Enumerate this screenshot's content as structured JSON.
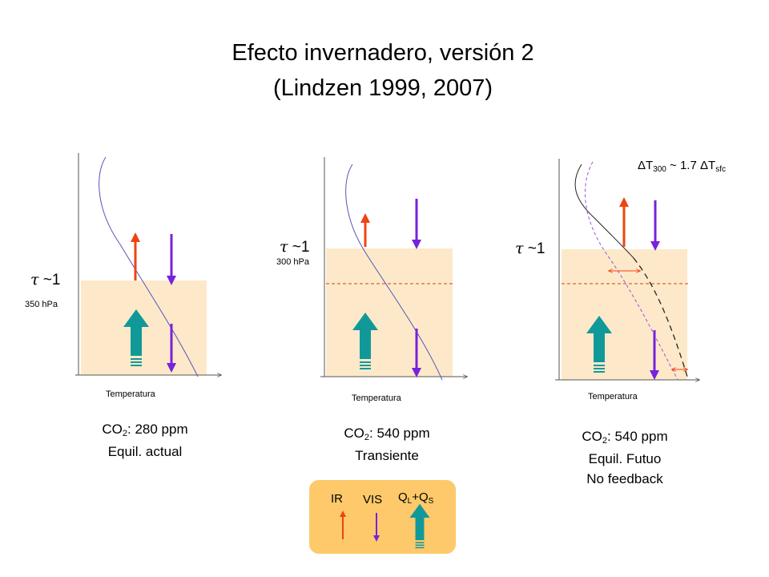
{
  "title": {
    "line1": "Efecto invernadero, versión 2",
    "line2": "(Lindzen 1999, 2007)"
  },
  "panels": [
    {
      "tau_symbol": "τ",
      "tau_value": "~1",
      "pressure": "350 hPa",
      "axis_label": "Temperatura",
      "co2_prefix": "CO",
      "co2_sub": "2",
      "co2_value": ": 280 ppm",
      "line2": "Equil. actual"
    },
    {
      "tau_symbol": "τ",
      "tau_value": "~1",
      "pressure": "300 hPa",
      "axis_label": "Temperatura",
      "co2_prefix": "CO",
      "co2_sub": "2",
      "co2_value": ": 540 ppm",
      "line2": "Transiente"
    },
    {
      "tau_symbol": "τ",
      "tau_value": "~1",
      "axis_label": "Temperatura",
      "co2_prefix": "CO",
      "co2_sub": "2",
      "co2_value": ": 540 ppm",
      "line2": "Equil. Futuo",
      "line3": "No feedback",
      "delta_t": {
        "delta1": "ΔT",
        "sub1": "300",
        "middle": " ~ 1.7 ",
        "delta2": "ΔT",
        "sub2": "sfc"
      }
    }
  ],
  "legend": {
    "ir": "IR",
    "vis": "VIS",
    "q_prefix": "Q",
    "q_sub1": "L",
    "q_middle": "+Q",
    "q_sub2": "S"
  },
  "colors": {
    "ir_arrow": "#ee4411",
    "vis_arrow": "#7722dd",
    "flux_arrow": "#119999",
    "layer_fill": "#fde9c9",
    "legend_fill": "#fdc96a",
    "profile_line": "#5555bb",
    "dashed_level": "#cc4411"
  }
}
